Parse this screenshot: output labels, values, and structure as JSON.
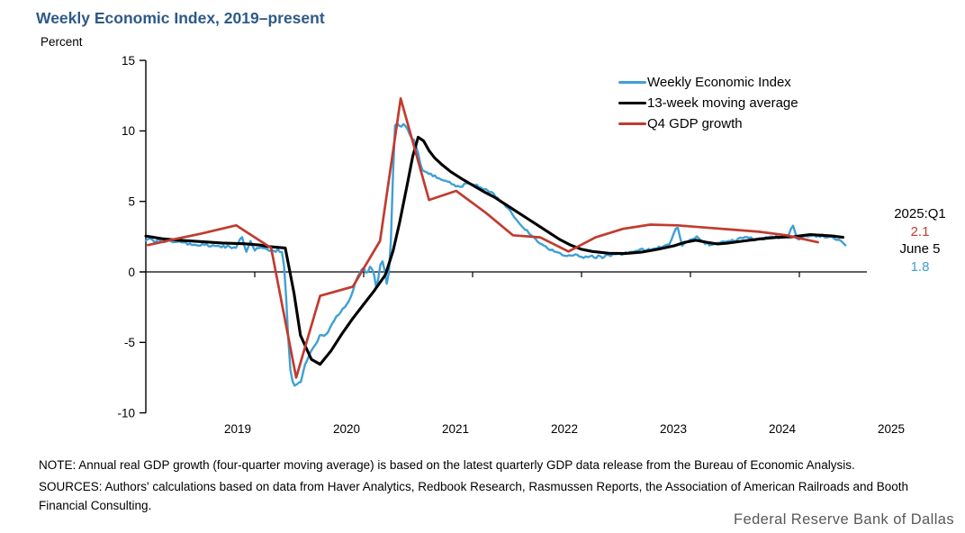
{
  "header": {
    "title": "Weekly Economic Index, 2019–present",
    "unit_label": "Percent"
  },
  "legend": [
    {
      "label": "Weekly Economic Index",
      "color": "#3fa0d5"
    },
    {
      "label": "13-week moving average",
      "color": "#000000"
    },
    {
      "label": "Q4 GDP growth",
      "color": "#c13b2f"
    }
  ],
  "annotation": {
    "gdp_label": "2025:Q1",
    "gdp_value": "2.1",
    "gdp_color": "#c13b2f",
    "wei_label": "June 5",
    "wei_value": "1.8",
    "wei_color": "#3fa0d5"
  },
  "footer": {
    "note": "NOTE: Annual real GDP growth (four-quarter moving average) is based on the latest quarterly GDP data release from the Bureau of Economic Analysis.",
    "sources": "SOURCES: Authors' calculations based on data from Haver Analytics, Redbook Research, Rasmussen Reports, the Association of American Railroads and Booth Financial Consulting.",
    "wordmark": "Federal Reserve Bank of Dallas"
  },
  "chart_data": {
    "type": "line",
    "title": "Weekly Economic Index, 2019-present",
    "ylabel": "Percent",
    "y_axis": {
      "ticks": [
        15,
        10,
        5,
        0,
        -5,
        -10
      ],
      "range": [
        -10,
        15
      ],
      "grid": false
    },
    "x_axis": {
      "year_labels": [
        "2019",
        "2020",
        "2021",
        "2022",
        "2023",
        "2024",
        "2025"
      ],
      "jan_ticks": [
        2020,
        2021,
        2022,
        2023,
        2024,
        2025
      ],
      "range": [
        2019.0,
        2025.62
      ],
      "label_year_offset": 0.843
    },
    "legend_position": "upper-right",
    "latest": {
      "gdp_quarter": "2025:Q1",
      "gdp_growth": 2.1,
      "wei_date": "June 5",
      "wei_value": 1.8
    },
    "series": [
      {
        "name": "Weekly Economic Index",
        "color": "#3fa0d5",
        "width": 2.4,
        "noise": 0.13,
        "weekly": true,
        "points": [
          [
            2019.0,
            2.3
          ],
          [
            2019.04,
            2.45
          ],
          [
            2019.08,
            2.15
          ],
          [
            2019.12,
            2.3
          ],
          [
            2019.17,
            2.05
          ],
          [
            2019.21,
            2.2
          ],
          [
            2019.25,
            2.15
          ],
          [
            2019.33,
            2.05
          ],
          [
            2019.42,
            1.95
          ],
          [
            2019.5,
            1.9
          ],
          [
            2019.58,
            1.85
          ],
          [
            2019.67,
            1.8
          ],
          [
            2019.75,
            1.78
          ],
          [
            2019.83,
            1.72
          ],
          [
            2019.88,
            2.6
          ],
          [
            2019.92,
            1.35
          ],
          [
            2019.96,
            2.2
          ],
          [
            2020.0,
            1.55
          ],
          [
            2020.04,
            1.7
          ],
          [
            2020.1,
            1.62
          ],
          [
            2020.16,
            1.55
          ],
          [
            2020.22,
            1.52
          ],
          [
            2020.26,
            1.45
          ],
          [
            2020.29,
            -2.0
          ],
          [
            2020.32,
            -6.6
          ],
          [
            2020.34,
            -7.6
          ],
          [
            2020.37,
            -8.15
          ],
          [
            2020.4,
            -7.8
          ],
          [
            2020.42,
            -7.9
          ],
          [
            2020.46,
            -6.6
          ],
          [
            2020.5,
            -5.9
          ],
          [
            2020.54,
            -5.3
          ],
          [
            2020.58,
            -4.9
          ],
          [
            2020.6,
            -4.4
          ],
          [
            2020.63,
            -4.55
          ],
          [
            2020.67,
            -4.3
          ],
          [
            2020.7,
            -3.8
          ],
          [
            2020.73,
            -3.4
          ],
          [
            2020.77,
            -3.0
          ],
          [
            2020.8,
            -2.7
          ],
          [
            2020.84,
            -2.4
          ],
          [
            2020.87,
            -2.0
          ],
          [
            2020.9,
            -1.4
          ],
          [
            2020.93,
            -0.6
          ],
          [
            2020.96,
            -0.1
          ],
          [
            2021.0,
            0.3
          ],
          [
            2021.03,
            -0.2
          ],
          [
            2021.06,
            0.4
          ],
          [
            2021.09,
            0.1
          ],
          [
            2021.12,
            -1.35
          ],
          [
            2021.15,
            0.5
          ],
          [
            2021.18,
            0.8
          ],
          [
            2021.21,
            -0.9
          ],
          [
            2021.24,
            0.3
          ],
          [
            2021.26,
            4.0
          ],
          [
            2021.28,
            10.4
          ],
          [
            2021.31,
            10.55
          ],
          [
            2021.34,
            10.3
          ],
          [
            2021.37,
            10.55
          ],
          [
            2021.4,
            10.2
          ],
          [
            2021.43,
            9.6
          ],
          [
            2021.46,
            9.4
          ],
          [
            2021.5,
            8.4
          ],
          [
            2021.53,
            7.35
          ],
          [
            2021.58,
            7.0
          ],
          [
            2021.65,
            6.8
          ],
          [
            2021.72,
            6.6
          ],
          [
            2021.8,
            6.3
          ],
          [
            2021.88,
            6.0
          ],
          [
            2021.95,
            6.3
          ],
          [
            2022.03,
            6.2
          ],
          [
            2022.1,
            5.9
          ],
          [
            2022.18,
            5.6
          ],
          [
            2022.26,
            5.0
          ],
          [
            2022.34,
            4.4
          ],
          [
            2022.42,
            3.5
          ],
          [
            2022.5,
            2.9
          ],
          [
            2022.58,
            2.3
          ],
          [
            2022.66,
            1.8
          ],
          [
            2022.74,
            1.5
          ],
          [
            2022.82,
            1.25
          ],
          [
            2022.9,
            1.15
          ],
          [
            2023.0,
            1.1
          ],
          [
            2023.1,
            1.05
          ],
          [
            2023.2,
            1.1
          ],
          [
            2023.3,
            1.2
          ],
          [
            2023.4,
            1.35
          ],
          [
            2023.5,
            1.5
          ],
          [
            2023.6,
            1.6
          ],
          [
            2023.7,
            1.7
          ],
          [
            2023.8,
            1.85
          ],
          [
            2023.88,
            3.3
          ],
          [
            2023.92,
            1.9
          ],
          [
            2024.0,
            2.3
          ],
          [
            2024.06,
            2.5
          ],
          [
            2024.12,
            2.1
          ],
          [
            2024.2,
            1.9
          ],
          [
            2024.28,
            2.1
          ],
          [
            2024.36,
            2.25
          ],
          [
            2024.44,
            2.3
          ],
          [
            2024.52,
            2.4
          ],
          [
            2024.6,
            2.3
          ],
          [
            2024.68,
            2.35
          ],
          [
            2024.76,
            2.45
          ],
          [
            2024.84,
            2.5
          ],
          [
            2024.9,
            2.6
          ],
          [
            2024.94,
            3.35
          ],
          [
            2024.98,
            2.35
          ],
          [
            2025.05,
            2.5
          ],
          [
            2025.12,
            2.55
          ],
          [
            2025.2,
            2.6
          ],
          [
            2025.28,
            2.45
          ],
          [
            2025.35,
            2.35
          ],
          [
            2025.4,
            2.1
          ],
          [
            2025.43,
            1.8
          ]
        ]
      },
      {
        "name": "13-week moving average",
        "color": "#000000",
        "width": 3.1,
        "noise": 0,
        "weekly": false,
        "points": [
          [
            2019.0,
            2.55
          ],
          [
            2019.15,
            2.35
          ],
          [
            2019.3,
            2.25
          ],
          [
            2019.5,
            2.15
          ],
          [
            2019.7,
            2.05
          ],
          [
            2019.9,
            2.0
          ],
          [
            2020.05,
            1.9
          ],
          [
            2020.12,
            1.8
          ],
          [
            2020.28,
            1.7
          ],
          [
            2020.36,
            -1.5
          ],
          [
            2020.42,
            -4.5
          ],
          [
            2020.52,
            -6.2
          ],
          [
            2020.6,
            -6.55
          ],
          [
            2020.7,
            -5.6
          ],
          [
            2020.8,
            -4.4
          ],
          [
            2020.9,
            -3.3
          ],
          [
            2021.0,
            -2.3
          ],
          [
            2021.1,
            -1.3
          ],
          [
            2021.2,
            -0.2
          ],
          [
            2021.27,
            1.5
          ],
          [
            2021.33,
            3.5
          ],
          [
            2021.4,
            6.2
          ],
          [
            2021.45,
            8.2
          ],
          [
            2021.5,
            9.55
          ],
          [
            2021.55,
            9.3
          ],
          [
            2021.6,
            8.6
          ],
          [
            2021.65,
            8.1
          ],
          [
            2021.72,
            7.6
          ],
          [
            2021.8,
            7.1
          ],
          [
            2021.9,
            6.6
          ],
          [
            2022.0,
            6.15
          ],
          [
            2022.1,
            5.7
          ],
          [
            2022.2,
            5.3
          ],
          [
            2022.3,
            4.8
          ],
          [
            2022.4,
            4.3
          ],
          [
            2022.5,
            3.8
          ],
          [
            2022.6,
            3.3
          ],
          [
            2022.7,
            2.8
          ],
          [
            2022.8,
            2.3
          ],
          [
            2022.9,
            1.9
          ],
          [
            2023.0,
            1.6
          ],
          [
            2023.1,
            1.45
          ],
          [
            2023.25,
            1.32
          ],
          [
            2023.4,
            1.3
          ],
          [
            2023.55,
            1.4
          ],
          [
            2023.7,
            1.6
          ],
          [
            2023.85,
            1.85
          ],
          [
            2023.95,
            2.1
          ],
          [
            2024.05,
            2.25
          ],
          [
            2024.15,
            2.1
          ],
          [
            2024.25,
            1.98
          ],
          [
            2024.35,
            2.05
          ],
          [
            2024.5,
            2.2
          ],
          [
            2024.65,
            2.35
          ],
          [
            2024.8,
            2.45
          ],
          [
            2024.95,
            2.5
          ],
          [
            2025.1,
            2.65
          ],
          [
            2025.2,
            2.6
          ],
          [
            2025.3,
            2.55
          ],
          [
            2025.4,
            2.45
          ]
        ]
      },
      {
        "name": "Q4 GDP growth",
        "color": "#c13b2f",
        "width": 2.7,
        "noise": 0,
        "weekly": false,
        "points": [
          [
            2019.02,
            1.9
          ],
          [
            2019.25,
            2.3
          ],
          [
            2019.5,
            2.7
          ],
          [
            2019.83,
            3.3
          ],
          [
            2020.15,
            1.7
          ],
          [
            2020.38,
            -7.5
          ],
          [
            2020.6,
            -1.7
          ],
          [
            2020.9,
            -1.05
          ],
          [
            2021.15,
            2.2
          ],
          [
            2021.34,
            12.3
          ],
          [
            2021.6,
            5.1
          ],
          [
            2021.85,
            5.75
          ],
          [
            2022.12,
            4.2
          ],
          [
            2022.37,
            2.6
          ],
          [
            2022.62,
            2.45
          ],
          [
            2022.88,
            1.45
          ],
          [
            2023.13,
            2.45
          ],
          [
            2023.38,
            3.05
          ],
          [
            2023.63,
            3.35
          ],
          [
            2023.88,
            3.3
          ],
          [
            2024.13,
            3.15
          ],
          [
            2024.38,
            3.0
          ],
          [
            2024.63,
            2.85
          ],
          [
            2024.88,
            2.6
          ],
          [
            2025.17,
            2.1
          ]
        ]
      }
    ]
  }
}
